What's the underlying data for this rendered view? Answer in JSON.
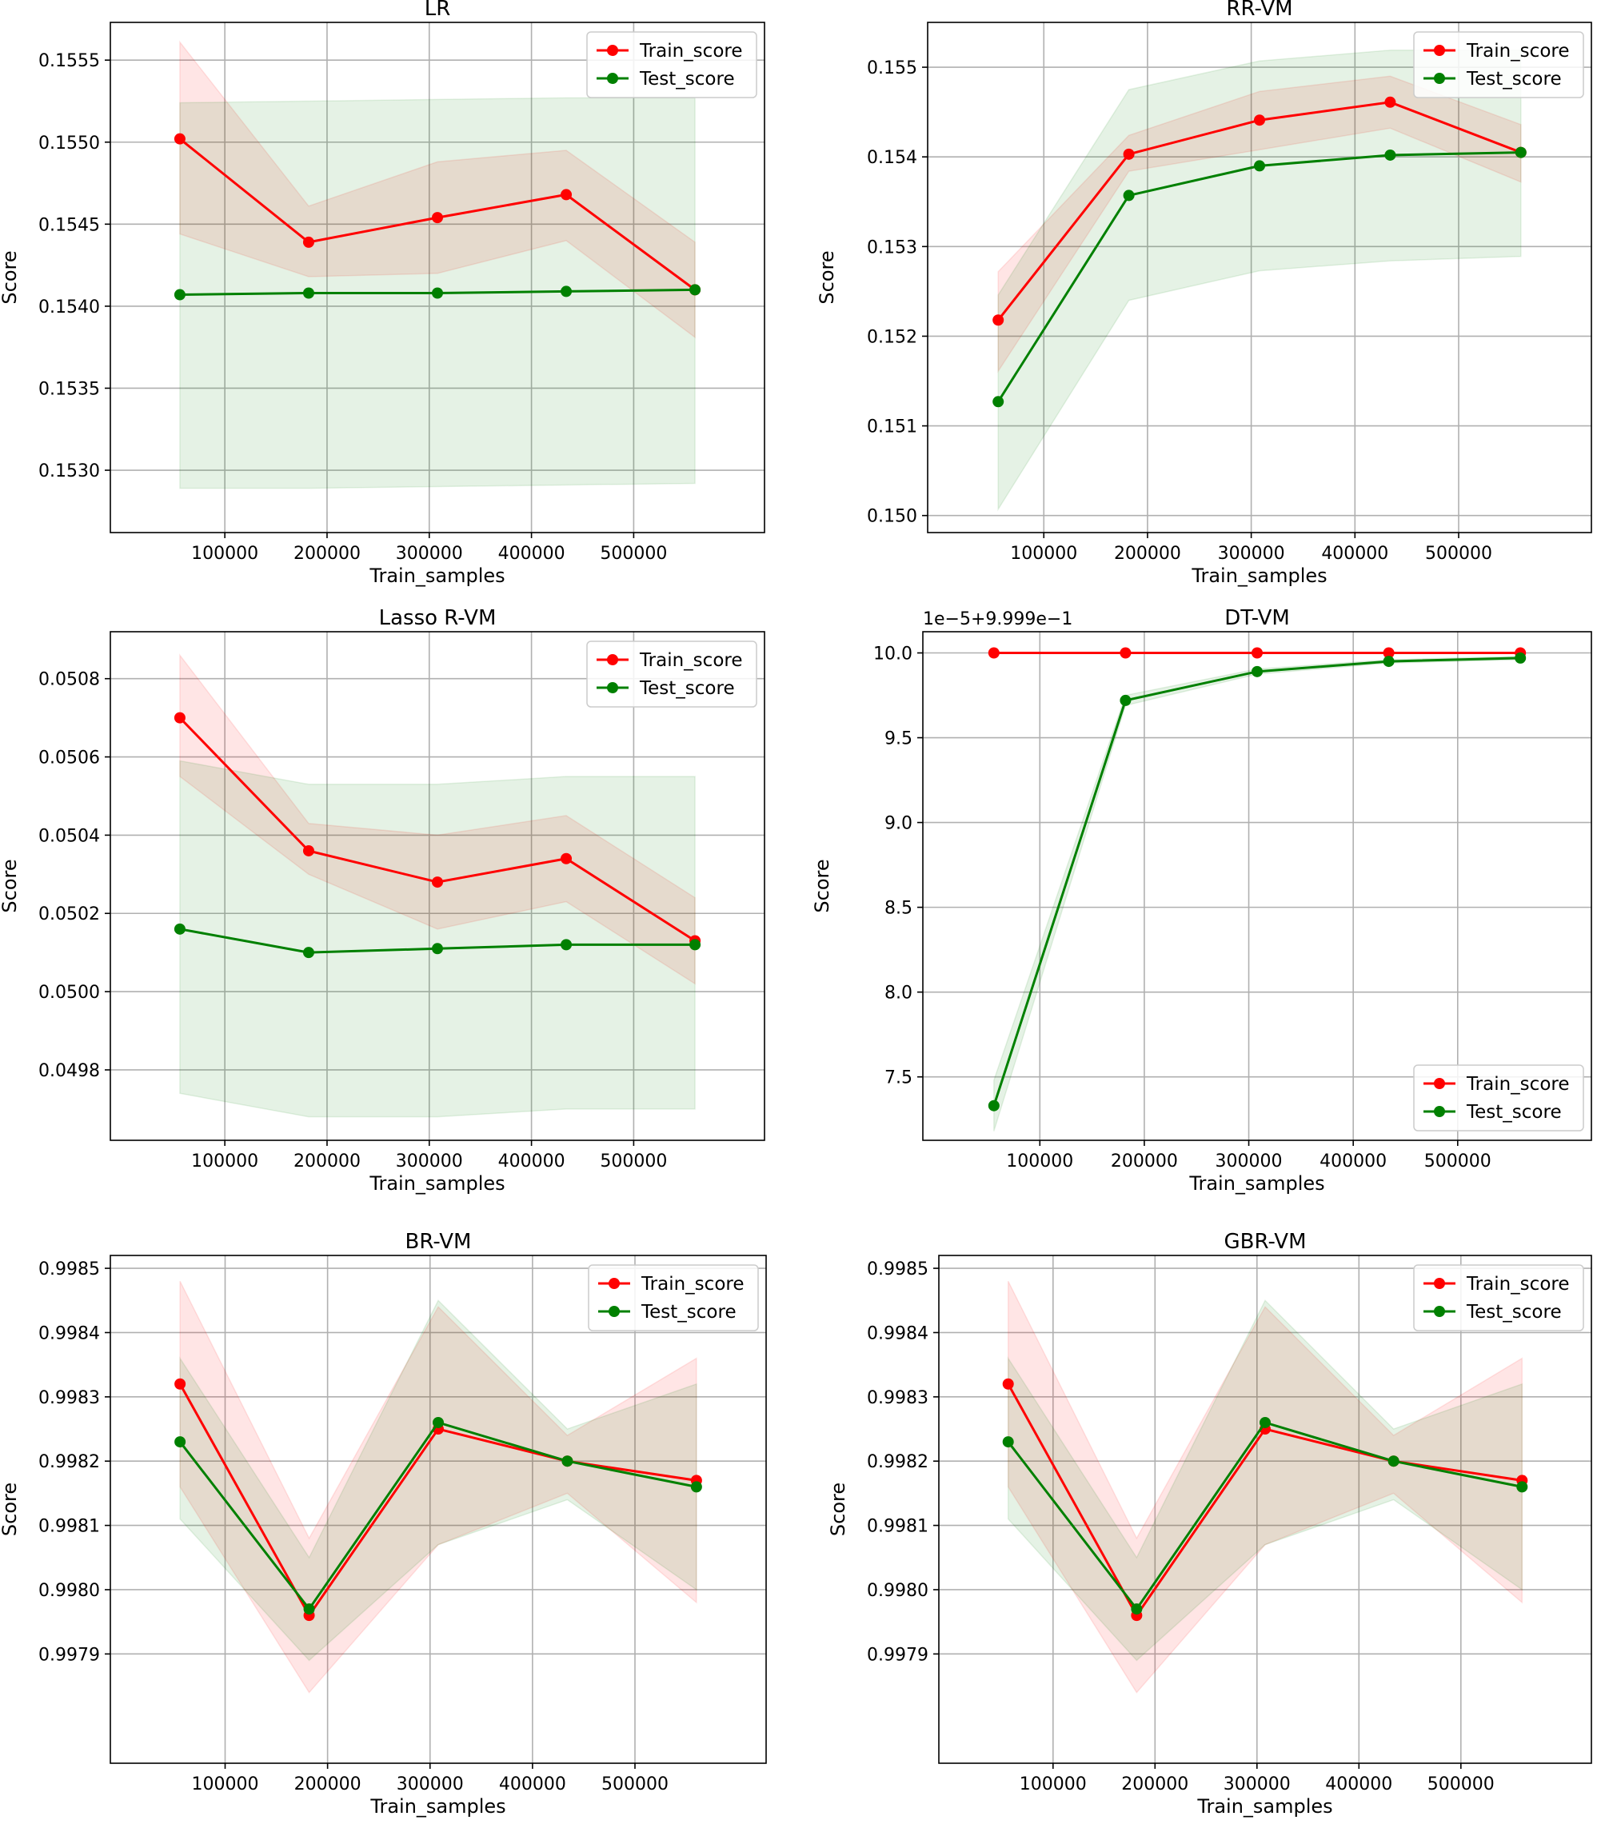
{
  "figure": {
    "description_free": true
  },
  "colors": {
    "train": "#ff0000",
    "test": "#008000",
    "train_band": "#ff0000",
    "test_band": "#008000",
    "grid": "#b0b0b0"
  },
  "chart_data": [
    {
      "id": "lr",
      "type": "line",
      "title": "LR",
      "xlabel": "Train_samples",
      "ylabel": "Score",
      "x": [
        56000,
        182000,
        308000,
        434000,
        560000
      ],
      "xlim": [
        -12000,
        628000
      ],
      "xticks": [
        100000,
        200000,
        300000,
        400000,
        500000
      ],
      "xtick_labels": [
        "100000",
        "200000",
        "300000",
        "400000",
        "500000"
      ],
      "ylim": [
        0.15262,
        0.15573
      ],
      "yticks": [
        0.153,
        0.1535,
        0.154,
        0.1545,
        0.155,
        0.1555
      ],
      "ytick_labels": [
        "0.1530",
        "0.1535",
        "0.1540",
        "0.1545",
        "0.1550",
        "0.1555"
      ],
      "offset_text": "",
      "legend_position": "upper right",
      "series": [
        {
          "name": "Train_score",
          "color": "red",
          "values": [
            0.15502,
            0.15439,
            0.15454,
            0.15468,
            0.1541
          ],
          "lower": [
            0.15444,
            0.15418,
            0.1542,
            0.1544,
            0.15381
          ],
          "upper": [
            0.15561,
            0.15461,
            0.15488,
            0.15495,
            0.15439
          ]
        },
        {
          "name": "Test_score",
          "color": "green",
          "values": [
            0.15407,
            0.15408,
            0.15408,
            0.15409,
            0.1541
          ],
          "lower": [
            0.15289,
            0.15289,
            0.1529,
            0.15291,
            0.15292
          ],
          "upper": [
            0.15524,
            0.15525,
            0.15526,
            0.15527,
            0.15527
          ]
        }
      ]
    },
    {
      "id": "rr",
      "type": "line",
      "title": "RR-VM",
      "xlabel": "Train_samples",
      "ylabel": "Score",
      "x": [
        56000,
        182000,
        308000,
        434000,
        560000
      ],
      "xlim": [
        -12000,
        628000
      ],
      "xticks": [
        100000,
        200000,
        300000,
        400000,
        500000
      ],
      "xtick_labels": [
        "100000",
        "200000",
        "300000",
        "400000",
        "500000"
      ],
      "ylim": [
        0.14981,
        0.1555
      ],
      "yticks": [
        0.15,
        0.151,
        0.152,
        0.153,
        0.154,
        0.155
      ],
      "ytick_labels": [
        "0.150",
        "0.151",
        "0.152",
        "0.153",
        "0.154",
        "0.155"
      ],
      "offset_text": "",
      "legend_position": "upper right",
      "series": [
        {
          "name": "Train_score",
          "color": "red",
          "values": [
            0.15218,
            0.15403,
            0.15441,
            0.15461,
            0.15405
          ],
          "lower": [
            0.15161,
            0.15384,
            0.15408,
            0.15432,
            0.15372
          ],
          "upper": [
            0.15272,
            0.15424,
            0.15473,
            0.1549,
            0.15436
          ]
        },
        {
          "name": "Test_score",
          "color": "green",
          "values": [
            0.15127,
            0.15357,
            0.1539,
            0.15402,
            0.15405
          ],
          "lower": [
            0.15007,
            0.1524,
            0.15273,
            0.15284,
            0.15289
          ],
          "upper": [
            0.15246,
            0.15475,
            0.15507,
            0.15519,
            0.15519
          ]
        }
      ]
    },
    {
      "id": "lasso",
      "type": "line",
      "title": "Lasso R-VM",
      "xlabel": "Train_samples",
      "ylabel": "Score",
      "x": [
        56000,
        182000,
        308000,
        434000,
        560000
      ],
      "xlim": [
        -12000,
        628000
      ],
      "xticks": [
        100000,
        200000,
        300000,
        400000,
        500000
      ],
      "xtick_labels": [
        "100000",
        "200000",
        "300000",
        "400000",
        "500000"
      ],
      "ylim": [
        0.04962,
        0.05092
      ],
      "yticks": [
        0.0498,
        0.05,
        0.0502,
        0.0504,
        0.0506,
        0.0508
      ],
      "ytick_labels": [
        "0.0498",
        "0.0500",
        "0.0502",
        "0.0504",
        "0.0506",
        "0.0508"
      ],
      "offset_text": "",
      "legend_position": "upper right",
      "series": [
        {
          "name": "Train_score",
          "color": "red",
          "values": [
            0.0507,
            0.05036,
            0.05028,
            0.05034,
            0.05013
          ],
          "lower": [
            0.05055,
            0.0503,
            0.05016,
            0.05023,
            0.05002
          ],
          "upper": [
            0.05086,
            0.05043,
            0.0504,
            0.05045,
            0.05024
          ]
        },
        {
          "name": "Test_score",
          "color": "green",
          "values": [
            0.05016,
            0.0501,
            0.05011,
            0.05012,
            0.05012
          ],
          "lower": [
            0.04974,
            0.04968,
            0.04968,
            0.0497,
            0.0497
          ],
          "upper": [
            0.05059,
            0.05053,
            0.05053,
            0.05055,
            0.05055
          ]
        }
      ]
    },
    {
      "id": "dt",
      "type": "line",
      "title": "DT-VM",
      "xlabel": "Train_samples",
      "ylabel": "Score",
      "x": [
        56000,
        182000,
        308000,
        434000,
        560000
      ],
      "xlim": [
        -12000,
        628000
      ],
      "xticks": [
        100000,
        200000,
        300000,
        400000,
        500000
      ],
      "xtick_labels": [
        "100000",
        "200000",
        "300000",
        "400000",
        "500000"
      ],
      "ylim": [
        7.126,
        10.125
      ],
      "yticks": [
        7.5,
        8.0,
        8.5,
        9.0,
        9.5,
        10.0
      ],
      "ytick_labels": [
        "7.5",
        "8.0",
        "8.5",
        "9.0",
        "9.5",
        "10.0"
      ],
      "offset_text": "1e−5+9.999e−1",
      "legend_position": "lower right",
      "series": [
        {
          "name": "Train_score",
          "color": "red",
          "values": [
            10.0,
            10.0,
            10.0,
            10.0,
            10.0
          ],
          "lower": [
            10.0,
            10.0,
            10.0,
            10.0,
            10.0
          ],
          "upper": [
            10.0,
            10.0,
            10.0,
            10.0,
            10.0
          ]
        },
        {
          "name": "Test_score",
          "color": "green",
          "values": [
            7.33,
            9.72,
            9.89,
            9.95,
            9.97
          ],
          "lower": [
            7.18,
            9.69,
            9.875,
            9.94,
            9.96
          ],
          "upper": [
            7.48,
            9.75,
            9.905,
            9.96,
            9.98
          ]
        }
      ]
    },
    {
      "id": "br",
      "type": "line",
      "title": "BR-VM",
      "xlabel": "Train_samples",
      "ylabel": "Score",
      "x": [
        56000,
        182000,
        308000,
        434000,
        560000
      ],
      "xlim": [
        -12000,
        628000
      ],
      "xticks": [
        100000,
        200000,
        300000,
        400000,
        500000
      ],
      "xtick_labels": [
        "100000",
        "200000",
        "300000",
        "400000",
        "500000"
      ],
      "ylim": [
        0.99773,
        0.99852
      ],
      "yticks": [
        0.9979,
        0.998,
        0.9981,
        0.9982,
        0.9983,
        0.9984,
        0.9985
      ],
      "ytick_labels": [
        "0.9979",
        "0.9980",
        "0.9981",
        "0.9982",
        "0.9983",
        "0.9984",
        "0.9985"
      ],
      "offset_text": "",
      "legend_position": "upper right",
      "series": [
        {
          "name": "Train_score",
          "color": "red",
          "values": [
            0.99832,
            0.99796,
            0.99825,
            0.9982,
            0.99817
          ],
          "lower": [
            0.99816,
            0.99784,
            0.99807,
            0.99815,
            0.99798
          ],
          "upper": [
            0.99848,
            0.99808,
            0.99844,
            0.99824,
            0.99836
          ]
        },
        {
          "name": "Test_score",
          "color": "green",
          "values": [
            0.99823,
            0.99797,
            0.99826,
            0.9982,
            0.99816
          ],
          "lower": [
            0.99811,
            0.99789,
            0.99807,
            0.99814,
            0.998
          ],
          "upper": [
            0.99836,
            0.99805,
            0.99845,
            0.99825,
            0.99832
          ]
        }
      ]
    },
    {
      "id": "gbr",
      "type": "line",
      "title": "GBR-VM",
      "xlabel": "Train_samples",
      "ylabel": "Score",
      "x": [
        56000,
        182000,
        308000,
        434000,
        560000
      ],
      "xlim": [
        -12000,
        628000
      ],
      "xticks": [
        100000,
        200000,
        300000,
        400000,
        500000
      ],
      "xtick_labels": [
        "100000",
        "200000",
        "300000",
        "400000",
        "500000"
      ],
      "ylim": [
        0.99773,
        0.99852
      ],
      "yticks": [
        0.9979,
        0.998,
        0.9981,
        0.9982,
        0.9983,
        0.9984,
        0.9985
      ],
      "ytick_labels": [
        "0.9979",
        "0.9980",
        "0.9981",
        "0.9982",
        "0.9983",
        "0.9984",
        "0.9985"
      ],
      "offset_text": "",
      "legend_position": "upper right",
      "series": [
        {
          "name": "Train_score",
          "color": "red",
          "values": [
            0.99832,
            0.99796,
            0.99825,
            0.9982,
            0.99817
          ],
          "lower": [
            0.99816,
            0.99784,
            0.99807,
            0.99815,
            0.99798
          ],
          "upper": [
            0.99848,
            0.99808,
            0.99844,
            0.99824,
            0.99836
          ]
        },
        {
          "name": "Test_score",
          "color": "green",
          "values": [
            0.99823,
            0.99797,
            0.99826,
            0.9982,
            0.99816
          ],
          "lower": [
            0.99811,
            0.99789,
            0.99807,
            0.99814,
            0.998
          ],
          "upper": [
            0.99836,
            0.99805,
            0.99845,
            0.99825,
            0.99832
          ]
        }
      ]
    }
  ]
}
